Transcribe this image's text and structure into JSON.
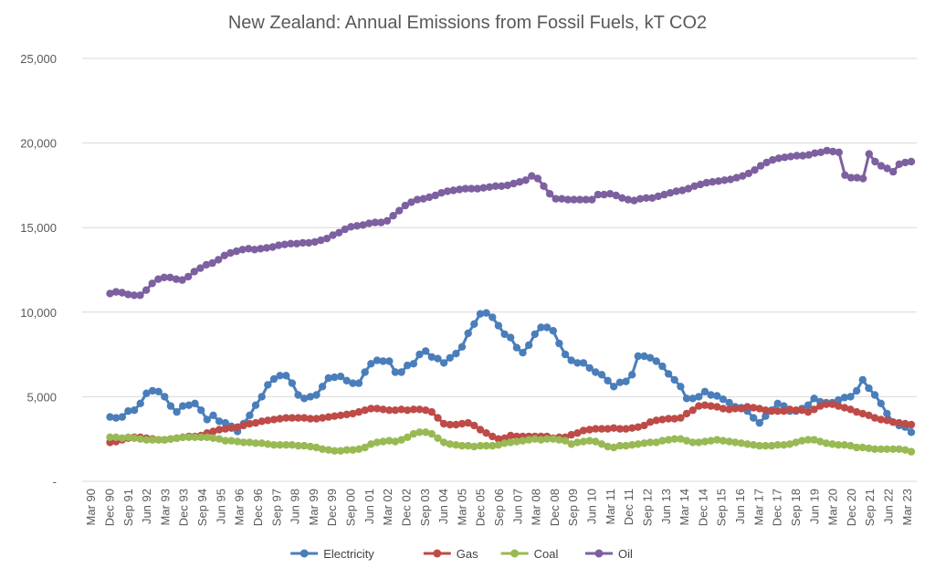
{
  "chart_data": {
    "type": "line",
    "title": "New Zealand: Annual Emissions from Fossil Fuels, kT CO2",
    "xlabel": "",
    "ylabel": "",
    "ylim": [
      0,
      25000
    ],
    "yticks": [
      "-",
      "5,000",
      "10,000",
      "15,000",
      "20,000",
      "25,000"
    ],
    "grid": true,
    "legend_position": "bottom",
    "x_tick_labels": [
      "Mar 90",
      "Dec 90",
      "Sep 91",
      "Jun 92",
      "Mar 93",
      "Dec 93",
      "Sep 94",
      "Jun 95",
      "Mar 96",
      "Dec 96",
      "Sep 97",
      "Jun 98",
      "Mar 99",
      "Dec 99",
      "Sep 00",
      "Jun 01",
      "Mar 02",
      "Dec 02",
      "Sep 03",
      "Jun 04",
      "Mar 05",
      "Dec 05",
      "Sep 06",
      "Jun 07",
      "Mar 08",
      "Dec 08",
      "Sep 09",
      "Jun 10",
      "Mar 11",
      "Dec 11",
      "Sep 12",
      "Jun 13",
      "Mar 14",
      "Dec 14",
      "Sep 15",
      "Jun 16",
      "Mar 17",
      "Dec 17",
      "Sep 18",
      "Jun 19",
      "Mar 20",
      "Dec 20",
      "Sep 21",
      "Jun 22",
      "Mar 23"
    ],
    "x_start": "Dec 90",
    "x_end": "Mar 23",
    "x_interval": "quarterly",
    "series": [
      {
        "name": "Electricity",
        "color": "#4a7ebb",
        "values": [
          3800,
          3750,
          3800,
          4150,
          4200,
          4600,
          5200,
          5350,
          5300,
          5000,
          4450,
          4100,
          4450,
          4500,
          4600,
          4200,
          3650,
          3900,
          3550,
          3450,
          3250,
          2950,
          3400,
          3900,
          4500,
          5000,
          5700,
          6050,
          6250,
          6250,
          5800,
          5100,
          4900,
          5000,
          5100,
          5600,
          6100,
          6150,
          6200,
          5950,
          5800,
          5800,
          6450,
          6950,
          7150,
          7100,
          7100,
          6450,
          6450,
          6850,
          6950,
          7500,
          7700,
          7350,
          7250,
          7000,
          7300,
          7550,
          7950,
          8750,
          9300,
          9900,
          9950,
          9700,
          9200,
          8700,
          8500,
          7900,
          7600,
          8050,
          8700,
          9100,
          9100,
          8900,
          8150,
          7500,
          7150,
          7000,
          7000,
          6700,
          6450,
          6300,
          5950,
          5600,
          5850,
          5900,
          6300,
          7400,
          7400,
          7300,
          7100,
          6800,
          6350,
          6000,
          5600,
          4900,
          4900,
          5000,
          5300,
          5100,
          5050,
          4850,
          4650,
          4400,
          4350,
          4150,
          3750,
          3450,
          3850,
          4200,
          4600,
          4450,
          4150,
          4150,
          4300,
          4500,
          4900,
          4700,
          4650,
          4650,
          4800,
          4950,
          5000,
          5350,
          6000,
          5500,
          5100,
          4600,
          4000,
          3500,
          3300,
          3200,
          2900
        ]
      },
      {
        "name": "Gas",
        "color": "#be4b48",
        "values": [
          2300,
          2350,
          2450,
          2550,
          2600,
          2600,
          2550,
          2500,
          2450,
          2450,
          2500,
          2550,
          2600,
          2650,
          2650,
          2700,
          2850,
          2950,
          3050,
          3100,
          3150,
          3200,
          3300,
          3400,
          3450,
          3550,
          3600,
          3650,
          3700,
          3750,
          3750,
          3750,
          3750,
          3700,
          3700,
          3750,
          3800,
          3850,
          3900,
          3950,
          4000,
          4100,
          4200,
          4300,
          4300,
          4250,
          4200,
          4200,
          4250,
          4200,
          4250,
          4250,
          4200,
          4100,
          3750,
          3400,
          3350,
          3350,
          3400,
          3450,
          3300,
          3050,
          2850,
          2650,
          2500,
          2550,
          2700,
          2650,
          2650,
          2650,
          2650,
          2650,
          2650,
          2550,
          2600,
          2600,
          2750,
          2850,
          3000,
          3050,
          3100,
          3100,
          3100,
          3150,
          3100,
          3100,
          3150,
          3200,
          3300,
          3500,
          3600,
          3650,
          3700,
          3700,
          3750,
          4000,
          4200,
          4450,
          4500,
          4450,
          4400,
          4300,
          4250,
          4300,
          4300,
          4400,
          4350,
          4300,
          4200,
          4150,
          4150,
          4150,
          4250,
          4200,
          4200,
          4100,
          4250,
          4450,
          4550,
          4550,
          4450,
          4350,
          4250,
          4100,
          4000,
          3900,
          3750,
          3650,
          3600,
          3500,
          3450,
          3400,
          3350
        ]
      },
      {
        "name": "Coal",
        "color": "#98b954",
        "values": [
          2600,
          2600,
          2550,
          2600,
          2550,
          2500,
          2450,
          2450,
          2450,
          2450,
          2500,
          2550,
          2600,
          2600,
          2600,
          2600,
          2600,
          2550,
          2500,
          2400,
          2400,
          2350,
          2300,
          2300,
          2250,
          2250,
          2200,
          2150,
          2150,
          2150,
          2150,
          2100,
          2100,
          2050,
          2000,
          1900,
          1850,
          1800,
          1800,
          1850,
          1850,
          1900,
          2000,
          2200,
          2300,
          2350,
          2400,
          2350,
          2450,
          2600,
          2800,
          2900,
          2900,
          2800,
          2550,
          2300,
          2200,
          2150,
          2100,
          2100,
          2050,
          2100,
          2100,
          2100,
          2150,
          2250,
          2300,
          2350,
          2400,
          2450,
          2500,
          2450,
          2500,
          2500,
          2450,
          2400,
          2200,
          2300,
          2350,
          2400,
          2350,
          2200,
          2050,
          2000,
          2100,
          2100,
          2150,
          2200,
          2250,
          2300,
          2300,
          2400,
          2450,
          2500,
          2500,
          2400,
          2300,
          2300,
          2350,
          2400,
          2450,
          2400,
          2350,
          2300,
          2250,
          2200,
          2150,
          2100,
          2100,
          2100,
          2150,
          2150,
          2200,
          2300,
          2400,
          2450,
          2450,
          2350,
          2250,
          2200,
          2150,
          2150,
          2100,
          2000,
          2000,
          1950,
          1900,
          1900,
          1900,
          1900,
          1900,
          1850,
          1750
        ]
      },
      {
        "name": "Oil",
        "color": "#7d60a0",
        "values": [
          11100,
          11200,
          11150,
          11050,
          11000,
          11000,
          11300,
          11700,
          11950,
          12050,
          12050,
          11950,
          11900,
          12100,
          12400,
          12600,
          12800,
          12900,
          13100,
          13350,
          13500,
          13600,
          13700,
          13750,
          13700,
          13750,
          13800,
          13850,
          13950,
          14000,
          14050,
          14050,
          14100,
          14100,
          14150,
          14250,
          14350,
          14550,
          14700,
          14900,
          15050,
          15100,
          15150,
          15250,
          15300,
          15300,
          15400,
          15700,
          16000,
          16300,
          16500,
          16650,
          16700,
          16800,
          16900,
          17050,
          17150,
          17200,
          17250,
          17300,
          17300,
          17300,
          17350,
          17400,
          17450,
          17450,
          17500,
          17600,
          17700,
          17800,
          18050,
          17900,
          17450,
          17000,
          16700,
          16700,
          16650,
          16650,
          16650,
          16650,
          16650,
          16950,
          16950,
          17000,
          16900,
          16750,
          16650,
          16600,
          16700,
          16750,
          16750,
          16850,
          16950,
          17050,
          17150,
          17200,
          17300,
          17450,
          17550,
          17650,
          17700,
          17750,
          17800,
          17850,
          17950,
          18050,
          18200,
          18400,
          18650,
          18850,
          19000,
          19100,
          19150,
          19200,
          19250,
          19250,
          19300,
          19400,
          19450,
          19550,
          19500,
          19450,
          18100,
          17950,
          17950,
          17900,
          19350,
          18900,
          18650,
          18500,
          18300,
          18750,
          18850,
          18900
        ]
      }
    ]
  }
}
